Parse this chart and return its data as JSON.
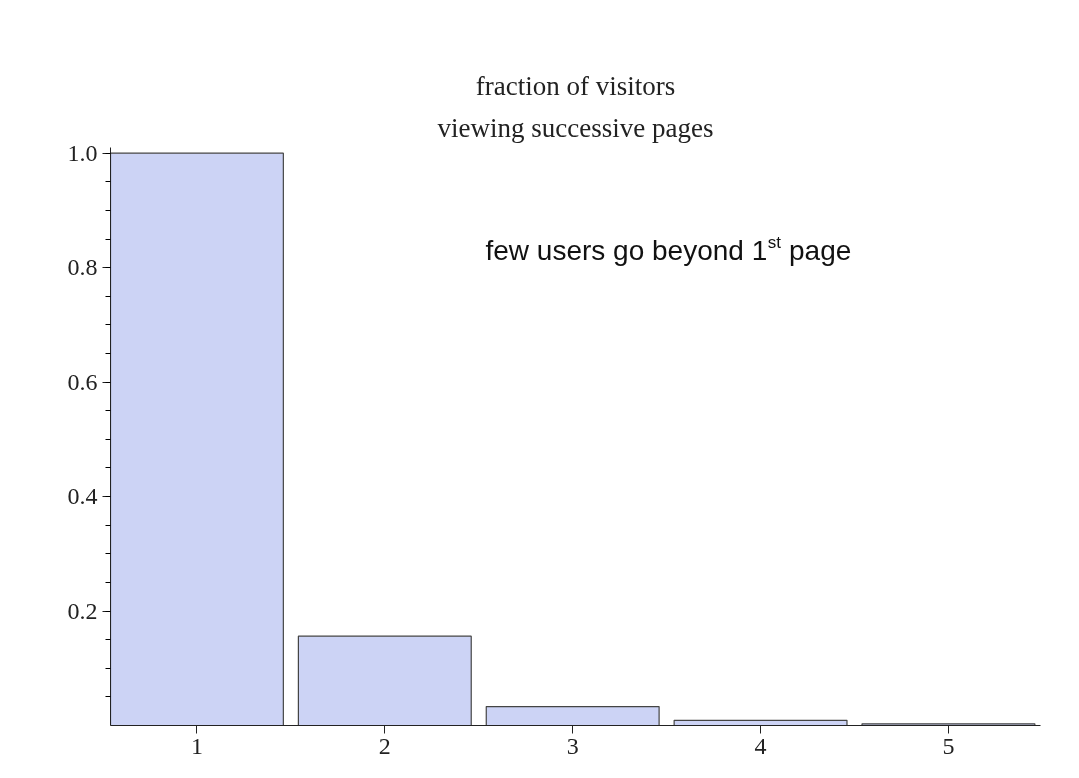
{
  "chart_data": {
    "type": "bar",
    "title": "fraction of visitors",
    "subtitle": "viewing successive pages",
    "categories": [
      "1",
      "2",
      "3",
      "4",
      "5"
    ],
    "values": [
      1.0,
      0.156,
      0.033,
      0.009,
      0.003
    ],
    "color": "#ccd3f5",
    "ylim": [
      0,
      1.01
    ],
    "yticks": [
      0.2,
      0.4,
      0.6,
      0.8,
      {
        "value": 1,
        "label": "1.0"
      }
    ],
    "grid": false,
    "annotations": [
      "few users go beyond 1$^{st}$ page"
    ]
  }
}
